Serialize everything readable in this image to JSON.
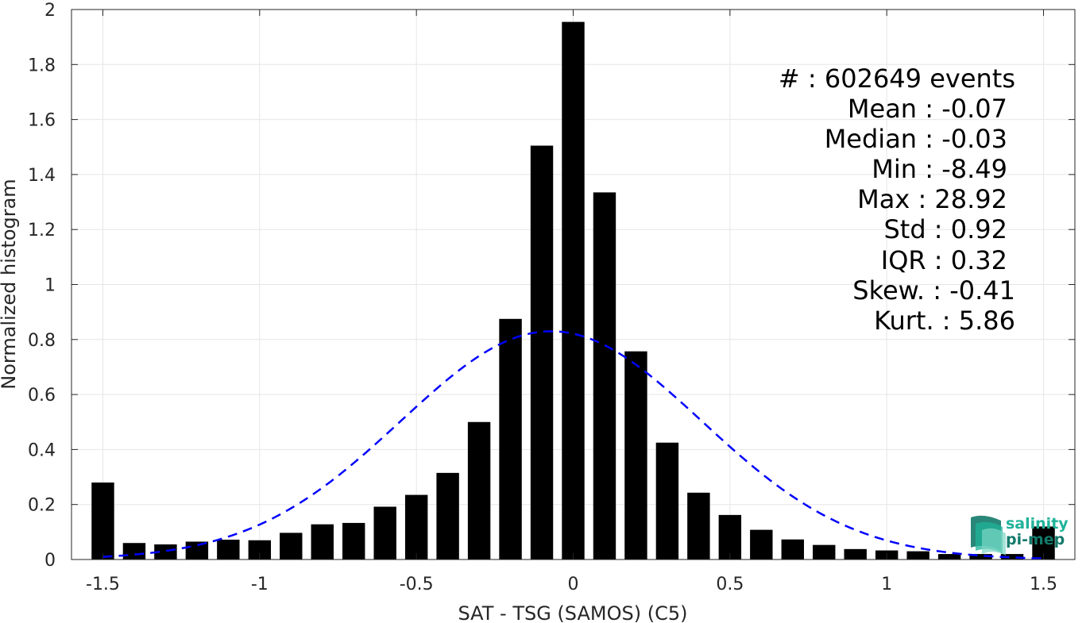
{
  "chart_data": {
    "type": "bar",
    "xlabel": "SAT - TSG (SAMOS) (C5)",
    "ylabel": "Normalized histogram",
    "xlim": [
      -1.6,
      1.6
    ],
    "ylim": [
      0,
      2
    ],
    "grid": true,
    "x_ticks": [
      "-1.5",
      "-1",
      "-0.5",
      "0",
      "0.5",
      "1",
      "1.5"
    ],
    "x_tick_values": [
      -1.5,
      -1,
      -0.5,
      0,
      0.5,
      1,
      1.5
    ],
    "y_ticks": [
      "0",
      "0.2",
      "0.4",
      "0.6",
      "0.8",
      "1",
      "1.2",
      "1.4",
      "1.6",
      "1.8",
      "2"
    ],
    "y_tick_values": [
      0,
      0.2,
      0.4,
      0.6,
      0.8,
      1,
      1.2,
      1.4,
      1.6,
      1.8,
      2
    ],
    "bin_width": 0.1,
    "bar_color": "#000000",
    "bins": [
      {
        "x": -1.5,
        "value": 0.28
      },
      {
        "x": -1.4,
        "value": 0.06
      },
      {
        "x": -1.3,
        "value": 0.055
      },
      {
        "x": -1.2,
        "value": 0.065
      },
      {
        "x": -1.1,
        "value": 0.072
      },
      {
        "x": -1.0,
        "value": 0.07
      },
      {
        "x": -0.9,
        "value": 0.097
      },
      {
        "x": -0.8,
        "value": 0.128
      },
      {
        "x": -0.7,
        "value": 0.133
      },
      {
        "x": -0.6,
        "value": 0.192
      },
      {
        "x": -0.5,
        "value": 0.235
      },
      {
        "x": -0.4,
        "value": 0.315
      },
      {
        "x": -0.3,
        "value": 0.5
      },
      {
        "x": -0.2,
        "value": 0.875
      },
      {
        "x": -0.1,
        "value": 1.505
      },
      {
        "x": 0.0,
        "value": 1.955
      },
      {
        "x": 0.1,
        "value": 1.335
      },
      {
        "x": 0.2,
        "value": 0.757
      },
      {
        "x": 0.3,
        "value": 0.425
      },
      {
        "x": 0.4,
        "value": 0.243
      },
      {
        "x": 0.5,
        "value": 0.162
      },
      {
        "x": 0.6,
        "value": 0.108
      },
      {
        "x": 0.7,
        "value": 0.073
      },
      {
        "x": 0.8,
        "value": 0.053
      },
      {
        "x": 0.9,
        "value": 0.038
      },
      {
        "x": 1.0,
        "value": 0.033
      },
      {
        "x": 1.1,
        "value": 0.03
      },
      {
        "x": 1.2,
        "value": 0.02
      },
      {
        "x": 1.3,
        "value": 0.02
      },
      {
        "x": 1.4,
        "value": 0.02
      },
      {
        "x": 1.5,
        "value": 0.12
      }
    ],
    "fit_curve": {
      "kind": "gaussian",
      "mean": -0.07,
      "sigma": 0.48,
      "peak": 0.83,
      "color": "#0000ff",
      "style": "dashed"
    },
    "annotations": [
      "#  : 602649 events",
      "Mean : -0.07",
      "Median : -0.03",
      "Min : -8.49",
      "Max : 28.92",
      "Std : 0.92",
      "IQR : 0.32",
      "Skew. : -0.41",
      "Kurt. : 5.86"
    ]
  },
  "logo": {
    "line1": "salinity",
    "line2": "pi-mep",
    "color1": "#1fb39a",
    "color2": "#127a6a"
  }
}
